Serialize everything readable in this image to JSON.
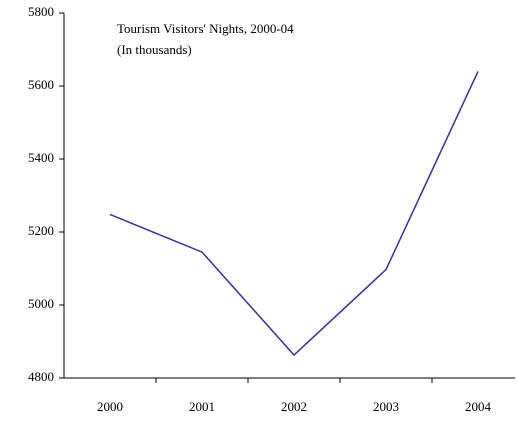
{
  "chart_data": {
    "type": "line",
    "title": "Tourism Visitors' Nights, 2000-04",
    "subtitle": "(In thousands)",
    "categories": [
      "2000",
      "2001",
      "2002",
      "2003",
      "2004"
    ],
    "values": [
      5248,
      5145,
      4863,
      5097,
      5640
    ],
    "color": "#333399",
    "ylim": [
      4800,
      5800
    ],
    "yticks": [
      4800,
      5000,
      5200,
      5400,
      5600,
      5800
    ]
  }
}
